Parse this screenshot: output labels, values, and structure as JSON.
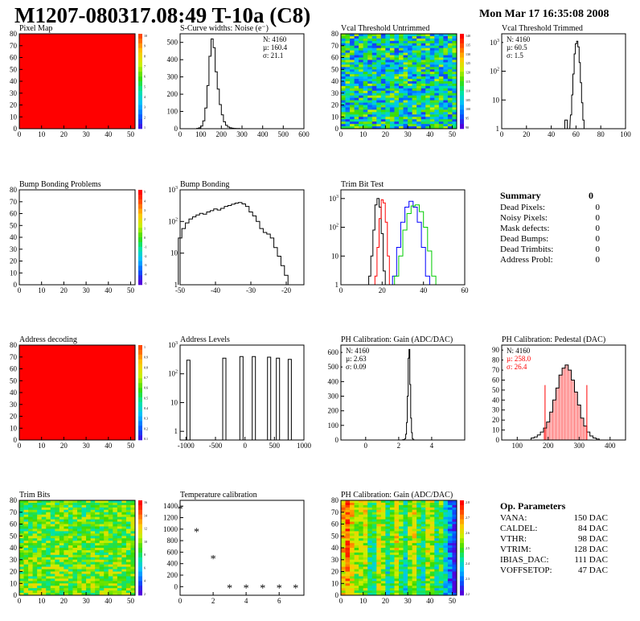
{
  "header": {
    "title": "M1207-080317.08:49 T-10a (C8)",
    "datetime": "Mon Mar 17 16:35:08 2008"
  },
  "panels": {
    "pixel_map": {
      "title": "Pixel Map",
      "scale": [
        "10",
        "9",
        "8",
        "7",
        "6",
        "5",
        "4",
        "3",
        "2",
        "1"
      ]
    },
    "noise": {
      "title": "S-Curve widths: Noise (e⁻)",
      "stats": [
        "N: 4160",
        "µ: 160.4",
        "σ: 21.1"
      ]
    },
    "vcal_untrimmed": {
      "title": "Vcal Threshold Untrimmed",
      "scale": [
        "140",
        "135",
        "130",
        "125",
        "120",
        "115",
        "110",
        "105",
        "100",
        "95",
        "90"
      ]
    },
    "vcal_trimmed": {
      "title": "Vcal Threshold Trimmed",
      "stats": [
        "N: 4160",
        "µ: 60.5",
        "σ:  1.5"
      ]
    },
    "bump_problems": {
      "title": "Bump Bonding Problems",
      "scale": [
        "5",
        "4",
        "3",
        "2",
        "1",
        "0",
        "-1",
        "-2",
        "-3",
        "-4",
        "-5"
      ]
    },
    "bump_bonding": {
      "title": "Bump Bonding"
    },
    "trim_bit_test": {
      "title": "Trim Bit Test"
    },
    "address_decoding": {
      "title": "Address decoding",
      "scale": [
        "1",
        "0.9",
        "0.8",
        "0.7",
        "0.6",
        "0.5",
        "0.4",
        "0.3",
        "0.2",
        "0.1"
      ]
    },
    "address_levels": {
      "title": "Address Levels"
    },
    "ph_gain": {
      "title": "PH Calibration: Gain (ADC/DAC)",
      "stats": [
        "N: 4160",
        "µ: 2.63",
        "σ: 0.09"
      ]
    },
    "ph_pedestal": {
      "title": "PH Calibration: Pedestal (DAC)",
      "stats": [
        "N: 4160",
        "µ: 258.0",
        "σ: 26.4"
      ]
    },
    "trim_bits": {
      "title": "Trim Bits",
      "scale": [
        "16",
        "14",
        "12",
        "10",
        "8",
        "6",
        "4",
        "2"
      ]
    },
    "temperature": {
      "title": "Temperature calibration"
    },
    "ph_gain_map": {
      "title": "PH Calibration: Gain (ADC/DAC)",
      "scale": [
        "2.8",
        "2.7",
        "2.6",
        "2.5",
        "2.4",
        "2.3",
        "2.2"
      ]
    }
  },
  "summary": {
    "title": "Summary",
    "total": "0",
    "rows": [
      {
        "label": "Dead Pixels:",
        "value": "0"
      },
      {
        "label": "Noisy Pixels:",
        "value": "0"
      },
      {
        "label": "Mask defects:",
        "value": "0"
      },
      {
        "label": "Dead Bumps:",
        "value": "0"
      },
      {
        "label": "Dead Trimbits:",
        "value": "0"
      },
      {
        "label": "Address Probl:",
        "value": "0"
      }
    ]
  },
  "op_params": {
    "title": "Op. Parameters",
    "rows": [
      {
        "label": "VANA:",
        "value": "150 DAC"
      },
      {
        "label": "CALDEL:",
        "value": "84 DAC"
      },
      {
        "label": "VTHR:",
        "value": "98 DAC"
      },
      {
        "label": "VTRIM:",
        "value": "128 DAC"
      },
      {
        "label": "IBIAS_DAC:",
        "value": "111 DAC"
      },
      {
        "label": "VOFFSETOP:",
        "value": "47 DAC"
      }
    ]
  },
  "colors": {
    "red": "#ff0000",
    "blue": "#0000ff",
    "green": "#00cc00",
    "black": "#000000"
  },
  "chart_data": [
    {
      "id": "pixel_map",
      "type": "heatmap",
      "title": "Pixel Map",
      "xlim": [
        0,
        52
      ],
      "ylim": [
        0,
        80
      ],
      "xticks": [
        0,
        10,
        20,
        30,
        40,
        50
      ],
      "yticks": [
        0,
        10,
        20,
        30,
        40,
        50,
        60,
        70,
        80
      ],
      "fill": "uniform-max",
      "zlim": [
        0,
        10
      ]
    },
    {
      "id": "noise",
      "type": "histogram",
      "title": "S-Curve widths: Noise (e⁻)",
      "xlim": [
        0,
        600
      ],
      "ylim": [
        0,
        550
      ],
      "xticks": [
        0,
        100,
        200,
        300,
        400,
        500,
        600
      ],
      "yticks": [
        0,
        100,
        200,
        300,
        400,
        500
      ],
      "x": [
        85,
        95,
        105,
        115,
        125,
        135,
        145,
        155,
        165,
        175,
        185,
        195,
        205,
        215,
        225,
        235,
        245,
        255,
        265,
        275,
        285,
        295,
        305
      ],
      "y": [
        2,
        5,
        15,
        45,
        120,
        250,
        420,
        520,
        470,
        330,
        230,
        140,
        80,
        40,
        20,
        10,
        5,
        3,
        2,
        1,
        1,
        0,
        0
      ]
    },
    {
      "id": "vcal_untrimmed",
      "type": "heatmap",
      "title": "Vcal Threshold Untrimmed",
      "xlim": [
        0,
        52
      ],
      "ylim": [
        0,
        80
      ],
      "xticks": [
        0,
        10,
        20,
        30,
        40,
        50
      ],
      "yticks": [
        0,
        10,
        20,
        30,
        40,
        50,
        60,
        70,
        80
      ],
      "zlim": [
        90,
        140
      ]
    },
    {
      "id": "vcal_trimmed",
      "type": "histogram",
      "title": "Vcal Threshold Trimmed",
      "log_y": true,
      "xlim": [
        0,
        100
      ],
      "ylim": [
        1,
        2000
      ],
      "xticks": [
        0,
        20,
        40,
        60,
        80,
        100
      ],
      "x": [
        52,
        54,
        56,
        57,
        58,
        59,
        60,
        61,
        62,
        63,
        64,
        65,
        66,
        67
      ],
      "y": [
        2,
        1,
        3,
        15,
        80,
        400,
        900,
        1100,
        700,
        200,
        40,
        8,
        2,
        1
      ]
    },
    {
      "id": "bump_problems",
      "type": "heatmap",
      "title": "Bump Bonding Problems",
      "xlim": [
        0,
        52
      ],
      "ylim": [
        0,
        80
      ],
      "xticks": [
        0,
        10,
        20,
        30,
        40,
        50
      ],
      "yticks": [
        0,
        10,
        20,
        30,
        40,
        50,
        60,
        70,
        80
      ],
      "fill": "empty",
      "zlim": [
        -5,
        5
      ]
    },
    {
      "id": "bump_bonding",
      "type": "histogram",
      "title": "Bump Bonding",
      "log_y": true,
      "xlim": [
        -50,
        -15
      ],
      "ylim": [
        1,
        1000
      ],
      "xticks": [
        -50,
        -40,
        -30,
        -20
      ],
      "x": [
        -50,
        -49,
        -48,
        -47,
        -46,
        -45,
        -44,
        -43,
        -42,
        -41,
        -40,
        -39,
        -38,
        -37,
        -36,
        -35,
        -34,
        -33,
        -32,
        -31,
        -30,
        -29,
        -28,
        -27,
        -26,
        -25,
        -24,
        -23,
        -22,
        -21,
        -20,
        -19
      ],
      "y": [
        30,
        60,
        90,
        120,
        140,
        160,
        180,
        170,
        200,
        220,
        250,
        230,
        260,
        300,
        320,
        350,
        380,
        400,
        360,
        300,
        200,
        150,
        100,
        60,
        45,
        40,
        30,
        15,
        8,
        4,
        2,
        1
      ]
    },
    {
      "id": "trim_bit_test",
      "type": "histogram",
      "title": "Trim Bit Test",
      "log_y": true,
      "xlim": [
        0,
        60
      ],
      "ylim": [
        1,
        2000
      ],
      "xticks": [
        0,
        20,
        40,
        60
      ],
      "series": [
        {
          "color": "#000000",
          "x": [
            14,
            15,
            16,
            17,
            18,
            19,
            20,
            21
          ],
          "y": [
            2,
            10,
            80,
            600,
            1000,
            500,
            60,
            3
          ]
        },
        {
          "color": "#ff0000",
          "x": [
            17,
            18,
            19,
            20,
            21,
            22,
            23,
            24
          ],
          "y": [
            2,
            20,
            200,
            900,
            700,
            150,
            10,
            1
          ]
        },
        {
          "color": "#0000ff",
          "x": [
            26,
            28,
            30,
            32,
            34,
            36,
            38,
            40,
            42
          ],
          "y": [
            2,
            20,
            150,
            500,
            800,
            500,
            150,
            20,
            2
          ]
        },
        {
          "color": "#00cc00",
          "x": [
            27,
            29,
            31,
            33,
            35,
            37,
            39,
            41,
            43,
            45
          ],
          "y": [
            2,
            10,
            80,
            300,
            550,
            600,
            350,
            100,
            15,
            2
          ]
        }
      ]
    },
    {
      "id": "address_decoding",
      "type": "heatmap",
      "title": "Address decoding",
      "xlim": [
        0,
        52
      ],
      "ylim": [
        0,
        80
      ],
      "xticks": [
        0,
        10,
        20,
        30,
        40,
        50
      ],
      "yticks": [
        0,
        10,
        20,
        30,
        40,
        50,
        60,
        70,
        80
      ],
      "fill": "uniform-max",
      "zlim": [
        0,
        1
      ]
    },
    {
      "id": "address_levels",
      "type": "histogram",
      "title": "Address Levels",
      "log_y": true,
      "xlim": [
        -1100,
        1000
      ],
      "ylim": [
        0.5,
        1000
      ],
      "xticks": [
        -1000,
        -500,
        0,
        500,
        1000
      ],
      "x": [
        -960,
        -350,
        -60,
        150,
        410,
        560,
        760
      ],
      "y": [
        300,
        350,
        400,
        400,
        380,
        350,
        320
      ]
    },
    {
      "id": "ph_gain",
      "type": "histogram",
      "title": "PH Calibration: Gain (ADC/DAC)",
      "xlim": [
        -1.5,
        6
      ],
      "ylim": [
        0,
        650
      ],
      "xticks": [
        0,
        2,
        4
      ],
      "yticks": [
        0,
        100,
        200,
        300,
        400,
        500,
        600
      ],
      "x": [
        2.3,
        2.4,
        2.45,
        2.5,
        2.55,
        2.6,
        2.65,
        2.7,
        2.75,
        2.8,
        2.85,
        2.9
      ],
      "y": [
        3,
        10,
        40,
        120,
        300,
        560,
        620,
        380,
        150,
        50,
        10,
        2
      ]
    },
    {
      "id": "ph_pedestal",
      "type": "histogram",
      "title": "PH Calibration: Pedestal (DAC)",
      "xlim": [
        50,
        450
      ],
      "ylim": [
        0,
        95
      ],
      "xticks": [
        100,
        200,
        300,
        400
      ],
      "yticks": [
        0,
        10,
        20,
        30,
        40,
        50,
        60,
        70,
        80,
        90
      ],
      "cut_lines": [
        190,
        325
      ],
      "x": [
        150,
        160,
        170,
        180,
        190,
        200,
        210,
        220,
        230,
        240,
        250,
        260,
        270,
        280,
        290,
        300,
        310,
        320,
        330,
        340,
        350,
        360
      ],
      "y": [
        2,
        3,
        5,
        8,
        12,
        18,
        28,
        40,
        52,
        65,
        72,
        75,
        70,
        60,
        48,
        35,
        22,
        14,
        8,
        4,
        2,
        1
      ]
    },
    {
      "id": "trim_bits",
      "type": "heatmap",
      "title": "Trim Bits",
      "xlim": [
        0,
        52
      ],
      "ylim": [
        0,
        80
      ],
      "xticks": [
        0,
        10,
        20,
        30,
        40,
        50
      ],
      "yticks": [
        0,
        10,
        20,
        30,
        40,
        50,
        60,
        70,
        80
      ],
      "zlim": [
        0,
        16
      ]
    },
    {
      "id": "temperature",
      "type": "scatter",
      "title": "Temperature calibration",
      "marker": "star",
      "xlim": [
        0,
        7.5
      ],
      "ylim": [
        -150,
        1500
      ],
      "xticks": [
        0,
        2,
        4,
        6
      ],
      "yticks": [
        0,
        200,
        400,
        600,
        800,
        1000,
        1200,
        1400
      ],
      "x": [
        0,
        1,
        2,
        3,
        4,
        5,
        6,
        7
      ],
      "y": [
        1350,
        960,
        490,
        -20,
        -20,
        -20,
        -20,
        -20
      ]
    },
    {
      "id": "ph_gain_map",
      "type": "heatmap",
      "title": "PH Calibration: Gain (ADC/DAC)",
      "xlim": [
        0,
        52
      ],
      "ylim": [
        0,
        80
      ],
      "xticks": [
        0,
        10,
        20,
        30,
        40,
        50
      ],
      "yticks": [
        0,
        10,
        20,
        30,
        40,
        50,
        60,
        70,
        80
      ],
      "zlim": [
        2.2,
        2.8
      ]
    }
  ]
}
